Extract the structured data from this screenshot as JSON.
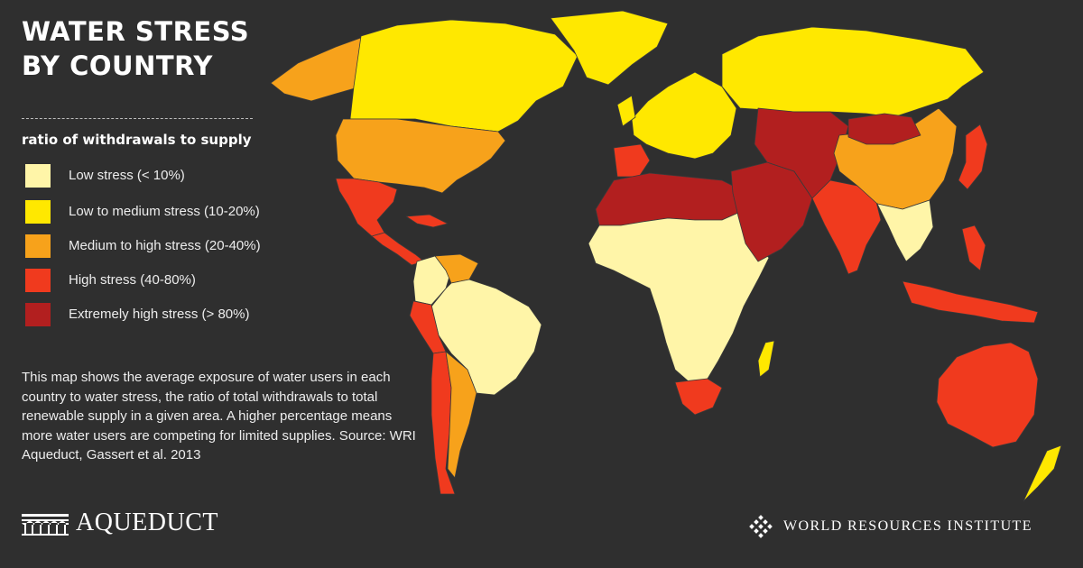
{
  "title": "WATER STRESS BY COUNTRY",
  "legend": {
    "title": "ratio of withdrawals to supply",
    "items": [
      {
        "label": "Low stress (< 10%)",
        "color": "#fff5a8"
      },
      {
        "label": "Low to medium stress (10-20%)",
        "color": "#ffe800"
      },
      {
        "label": "Medium to high stress (20-40%)",
        "color": "#f7a21b"
      },
      {
        "label": "High stress (40-80%)",
        "color": "#f03a1e"
      },
      {
        "label": "Extremely high stress (> 80%)",
        "color": "#b21f1f"
      }
    ]
  },
  "description": "This map shows the average exposure of water users in each country to water stress, the ratio of total withdrawals to total renewable supply in a given area. A higher percentage means more water users are competing for limited supplies. Source: WRI Aqueduct, Gassert et al. 2013",
  "logos": {
    "aqueduct": "AQUEDUCT",
    "wri": "WORLD RESOURCES INSTITUTE"
  },
  "colors": {
    "background": "#2f2f2f",
    "low": "#fff5a8",
    "low_medium": "#ffe800",
    "medium_high": "#f7a21b",
    "high": "#f03a1e",
    "extremely_high": "#b21f1f"
  },
  "regions": [
    {
      "name": "alaska",
      "level": "medium_high"
    },
    {
      "name": "canada",
      "level": "low_medium"
    },
    {
      "name": "greenland",
      "level": "low_medium"
    },
    {
      "name": "united-states",
      "level": "medium_high"
    },
    {
      "name": "mexico",
      "level": "high"
    },
    {
      "name": "central-america",
      "level": "high"
    },
    {
      "name": "colombia",
      "level": "low"
    },
    {
      "name": "venezuela",
      "level": "medium_high"
    },
    {
      "name": "brazil",
      "level": "low"
    },
    {
      "name": "peru",
      "level": "high"
    },
    {
      "name": "chile",
      "level": "high"
    },
    {
      "name": "argentina",
      "level": "medium_high"
    },
    {
      "name": "western-europe",
      "level": "low_medium"
    },
    {
      "name": "iberia",
      "level": "high"
    },
    {
      "name": "russia",
      "level": "low_medium"
    },
    {
      "name": "north-africa",
      "level": "extremely_high"
    },
    {
      "name": "sub-saharan-africa",
      "level": "low"
    },
    {
      "name": "south-africa",
      "level": "high"
    },
    {
      "name": "middle-east",
      "level": "extremely_high"
    },
    {
      "name": "central-asia",
      "level": "extremely_high"
    },
    {
      "name": "india",
      "level": "high"
    },
    {
      "name": "china",
      "level": "medium_high"
    },
    {
      "name": "mongolia",
      "level": "extremely_high"
    },
    {
      "name": "southeast-asia",
      "level": "low"
    },
    {
      "name": "indonesia",
      "level": "high"
    },
    {
      "name": "australia",
      "level": "high"
    },
    {
      "name": "japan",
      "level": "high"
    },
    {
      "name": "new-zealand",
      "level": "low_medium"
    },
    {
      "name": "madagascar",
      "level": "low_medium"
    }
  ]
}
